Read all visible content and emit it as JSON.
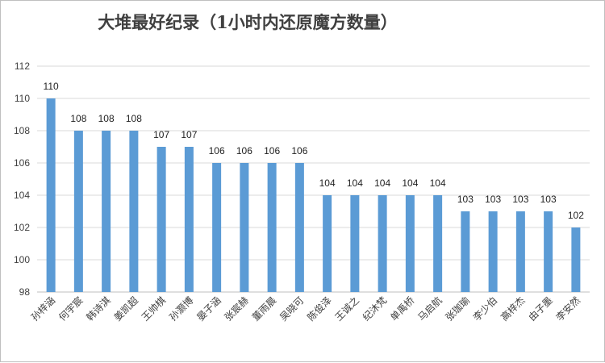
{
  "chart_data": {
    "type": "bar",
    "title": "大堆最好纪录（1小时内还原魔方数量）",
    "categories": [
      "孙梓涵",
      "何宇宸",
      "韩诗淇",
      "姜凯超",
      "王帅棋",
      "孙灏博",
      "晏子涵",
      "张宸赫",
      "董雨晨",
      "吴晓可",
      "陈俊泽",
      "王诚之",
      "纪沐梵",
      "单禹桥",
      "马启航",
      "张珈瑜",
      "李少伯",
      "高梓杰",
      "由子墨",
      "李安然"
    ],
    "values": [
      110,
      108,
      108,
      108,
      107,
      107,
      106,
      106,
      106,
      106,
      104,
      104,
      104,
      104,
      104,
      103,
      103,
      103,
      103,
      102
    ],
    "ylim": [
      98,
      112
    ],
    "yticks": [
      98,
      100,
      102,
      104,
      106,
      108,
      110,
      112
    ],
    "xlabel": "",
    "ylabel": "",
    "grid": true,
    "bar_color": "#5b9bd5",
    "legend": "none"
  }
}
